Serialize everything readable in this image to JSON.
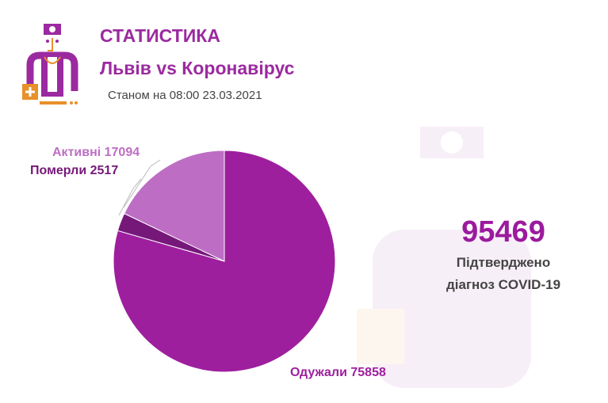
{
  "header": {
    "title": "СТАТИСТИКА",
    "subtitle": "Львів vs Коронавірус",
    "as_of": "Станом на 08:00 23.03.2021"
  },
  "summary": {
    "total": "95469",
    "caption_line1": "Підтверджено",
    "caption_line2": "діагноз COVID-19"
  },
  "colors": {
    "accent": "#9b2aa0",
    "orange": "#e8902a"
  },
  "chart_data": {
    "type": "pie",
    "start": "top, clockwise",
    "slices": [
      {
        "label": "Одужали 75858",
        "name": "Одужали",
        "value": 75858,
        "color": "#9e1f9e"
      },
      {
        "label": "Померли 2517",
        "name": "Померли",
        "value": 2517,
        "color": "#76187a"
      },
      {
        "label": "Активні 17094",
        "name": "Активні",
        "value": 17094,
        "color": "#bd6ec4"
      }
    ]
  }
}
